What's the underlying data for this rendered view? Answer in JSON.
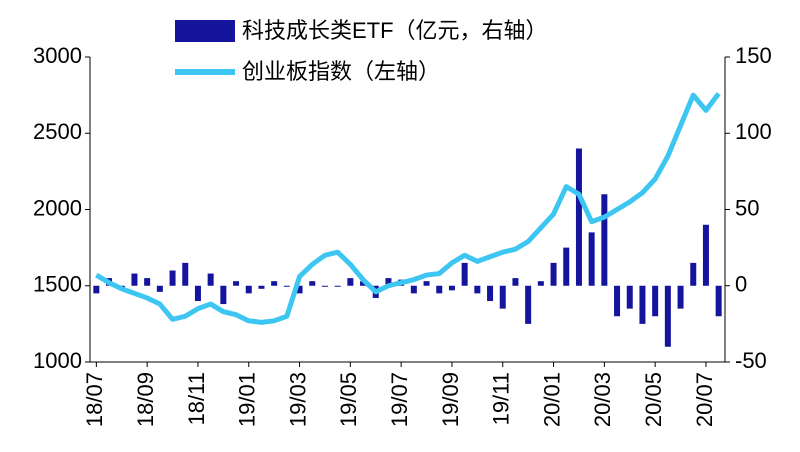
{
  "chart_data": {
    "type": "bar-line",
    "categories": [
      "18/07",
      null,
      null,
      null,
      "18/09",
      null,
      null,
      null,
      "18/11",
      null,
      null,
      null,
      "19/01",
      null,
      null,
      null,
      "19/03",
      null,
      null,
      null,
      "19/05",
      null,
      null,
      null,
      "19/07",
      null,
      null,
      null,
      "19/09",
      null,
      null,
      null,
      "19/11",
      null,
      null,
      null,
      "20/01",
      null,
      null,
      null,
      "20/03",
      null,
      null,
      null,
      "20/05",
      null,
      null,
      null,
      "20/07",
      null
    ],
    "series": [
      {
        "name": "科技成长类ETF（亿元，右轴）",
        "type": "bar",
        "axis": "y2",
        "color": "#14149c",
        "values": [
          -5,
          5,
          -3,
          8,
          5,
          -4,
          10,
          15,
          -10,
          8,
          -12,
          3,
          -5,
          -2,
          3,
          0,
          -5,
          3,
          0,
          0,
          5,
          3,
          -8,
          5,
          4,
          -5,
          3,
          -5,
          -3,
          15,
          -5,
          -10,
          -15,
          5,
          -25,
          3,
          15,
          25,
          90,
          35,
          60,
          -20,
          -15,
          -25,
          -20,
          -40,
          -15,
          15,
          40,
          -20
        ]
      },
      {
        "name": "创业板指数（左轴）",
        "type": "line",
        "axis": "y",
        "color": "#3ec6f2",
        "values": [
          1570,
          1520,
          1480,
          1450,
          1420,
          1380,
          1280,
          1300,
          1350,
          1380,
          1330,
          1310,
          1270,
          1260,
          1270,
          1300,
          1560,
          1640,
          1700,
          1720,
          1640,
          1540,
          1460,
          1500,
          1520,
          1540,
          1570,
          1580,
          1650,
          1700,
          1660,
          1690,
          1720,
          1740,
          1790,
          1880,
          1970,
          2150,
          2100,
          1920,
          1950,
          2000,
          2050,
          2110,
          2200,
          2350,
          2550,
          2750,
          2650,
          2760
        ]
      }
    ],
    "ylim": [
      1000,
      3000
    ],
    "yticks": [
      1000,
      1500,
      2000,
      2500,
      3000
    ],
    "y2lim": [
      -50,
      150
    ],
    "y2ticks": [
      -50,
      0,
      50,
      100,
      150
    ]
  }
}
